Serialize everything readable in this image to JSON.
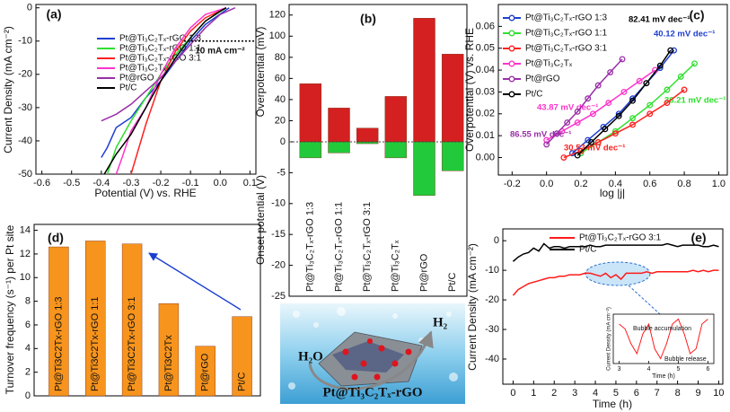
{
  "chart_data": [
    {
      "type": "line",
      "panel_label": "(a)",
      "xlabel": "Potential (V) vs. RHE",
      "ylabel": "Current Density (mA cm⁻²)",
      "xlim": [
        -0.62,
        0.12
      ],
      "ylim": [
        -50,
        1
      ],
      "xticks": [
        -0.6,
        -0.5,
        -0.4,
        -0.3,
        -0.2,
        -0.1,
        {
          "value": 0,
          "label": "0.0"
        },
        0.1
      ],
      "yticks": [
        -50,
        -40,
        -30,
        -20,
        -10,
        0
      ],
      "reference_line": {
        "value": -10,
        "label": "10 mA cm⁻²"
      },
      "series": [
        {
          "name": "Pt@Ti₃C₂Tₓ-rGO 1:3",
          "color": "#1f3fd1",
          "x": [
            0.03,
            -0.05,
            -0.1,
            -0.15,
            -0.2,
            -0.25,
            -0.3,
            -0.35,
            -0.38,
            -0.4
          ],
          "values": [
            0,
            -5,
            -10,
            -16,
            -22,
            -27,
            -33,
            -36,
            -42,
            -45
          ]
        },
        {
          "name": "Pt@Ti₃C₂Tₓ-rGO 1:1",
          "color": "#2fe02f",
          "x": [
            0.02,
            -0.05,
            -0.1,
            -0.15,
            -0.2,
            -0.25,
            -0.3,
            -0.35,
            -0.38
          ],
          "values": [
            0,
            -4,
            -9,
            -14,
            -20,
            -27,
            -34,
            -42,
            -50
          ]
        },
        {
          "name": "Pt@Ti₃C₂Tₓ-rGO 3:1",
          "color": "#ff2020",
          "x": [
            0.02,
            -0.05,
            -0.1,
            -0.15,
            -0.2,
            -0.25,
            -0.28,
            -0.3
          ],
          "values": [
            0,
            -3,
            -7,
            -13,
            -22,
            -35,
            -44,
            -50
          ]
        },
        {
          "name": "Pt@Ti₃C₂Tₓ",
          "color": "#ff33cc",
          "x": [
            0.02,
            -0.05,
            -0.1,
            -0.15,
            -0.2,
            -0.25,
            -0.3,
            -0.33,
            -0.35
          ],
          "values": [
            0,
            -2,
            -6,
            -12,
            -20,
            -30,
            -37,
            -45,
            -50
          ]
        },
        {
          "name": "Pt@rGO",
          "color": "#9a2fa8",
          "x": [
            0.05,
            0,
            -0.05,
            -0.1,
            -0.15,
            -0.2,
            -0.25,
            -0.3,
            -0.35,
            -0.4
          ],
          "values": [
            0,
            -2,
            -6,
            -11,
            -16,
            -21,
            -25,
            -29,
            -32,
            -34
          ]
        },
        {
          "name": "Pt/C",
          "color": "#000000",
          "x": [
            0.02,
            0,
            -0.05,
            -0.1,
            -0.15,
            -0.2,
            -0.25,
            -0.3,
            -0.35,
            -0.39
          ],
          "values": [
            0,
            -1,
            -4,
            -9,
            -15,
            -22,
            -30,
            -38,
            -44,
            -50
          ]
        }
      ]
    },
    {
      "type": "bar",
      "panel_label": "(b)",
      "ylabel": "Overpotential (mV)",
      "y2label": "Onset potential (V)",
      "categories": [
        "Pt@Ti₃C₂Tₓ-rGO 1:3",
        "Pt@Ti₃C₂Tₓ-rGO 1:1",
        "Pt@Ti₃C₂Tₓ-rGO 3:1",
        "Pt@Ti₃C₂Tₓ",
        "Pt@rGO",
        "Pt/C"
      ],
      "ylim": [
        0,
        130
      ],
      "yticks": [
        0,
        20,
        40,
        60,
        80,
        100,
        120
      ],
      "y2lim": [
        -25,
        0
      ],
      "y2ticks": [
        -5,
        -10,
        -15,
        -20,
        -25
      ],
      "series": [
        {
          "color": "#d42020",
          "values": [
            55,
            32,
            13,
            43,
            117,
            83
          ]
        },
        {
          "color": "#22c93a",
          "axis": "y2",
          "values": [
            -2.6,
            -1.8,
            -0.3,
            -2.6,
            -8.7,
            -4.7
          ]
        }
      ]
    },
    {
      "type": "line",
      "markers": true,
      "panel_label": "(c)",
      "xlabel": "log |j|",
      "ylabel": "Overpotential (V) vs. RHE",
      "xlim": [
        -0.28,
        1.05
      ],
      "ylim": [
        -0.008,
        0.07
      ],
      "xticks": [
        -0.2,
        {
          "value": 0,
          "label": "0.0"
        },
        0.2,
        0.4,
        0.6,
        0.8,
        {
          "value": 1,
          "label": "1.0"
        }
      ],
      "yticks": [
        {
          "value": 0,
          "label": "0.00"
        },
        0.01,
        0.02,
        0.03,
        0.04,
        0.05,
        0.06
      ],
      "series": [
        {
          "name": "Pt@Ti₃C₂Tₓ-rGO 1:3",
          "color": "#1f3fd1",
          "slope_label": "40.12 mV dec⁻¹",
          "x": [
            0.15,
            0.24,
            0.33,
            0.42,
            0.5,
            0.58,
            0.66,
            0.74
          ],
          "values": [
            0.002,
            0.008,
            0.014,
            0.02,
            0.027,
            0.034,
            0.041,
            0.049
          ]
        },
        {
          "name": "Pt@Ti₃C₂Tₓ-rGO 1:1",
          "color": "#2fe02f",
          "slope_label": "36.21 mV dec⁻¹",
          "x": [
            0.2,
            0.3,
            0.4,
            0.5,
            0.6,
            0.7,
            0.78,
            0.86
          ],
          "values": [
            0.002,
            0.007,
            0.012,
            0.018,
            0.024,
            0.031,
            0.037,
            0.043
          ]
        },
        {
          "name": "Pt@Ti₃C₂Tₓ-rGO 3:1",
          "color": "#ff2020",
          "slope_label": "30.53 mV dec⁻¹",
          "x": [
            0.1,
            0.2,
            0.3,
            0.4,
            0.5,
            0.6,
            0.7,
            0.8
          ],
          "values": [
            0,
            0.003,
            0.007,
            0.011,
            0.015,
            0.02,
            0.025,
            0.031
          ]
        },
        {
          "name": "Pt@Ti₃C₂Tₓ",
          "color": "#ff33cc",
          "slope_label": "43.87 mV dec⁻¹",
          "x": [
            0,
            0.09,
            0.18,
            0.27,
            0.36,
            0.45,
            0.54,
            0.63
          ],
          "values": [
            0.008,
            0.012,
            0.016,
            0.02,
            0.025,
            0.03,
            0.035,
            0.04
          ]
        },
        {
          "name": "Pt@rGO",
          "color": "#9a2fa8",
          "slope_label": "86.55 mV dec⁻¹",
          "x": [
            0,
            0.06,
            0.12,
            0.18,
            0.24,
            0.3,
            0.37,
            0.44
          ],
          "values": [
            0.006,
            0.011,
            0.016,
            0.021,
            0.027,
            0.033,
            0.039,
            0.045
          ]
        },
        {
          "name": "Pt/C",
          "color": "#000000",
          "slope_label": "82.41 mV dec⁻¹",
          "x": [
            0.18,
            0.26,
            0.34,
            0.42,
            0.5,
            0.58,
            0.66,
            0.72
          ],
          "values": [
            0.001,
            0.007,
            0.013,
            0.019,
            0.026,
            0.034,
            0.042,
            0.049
          ]
        }
      ]
    },
    {
      "type": "bar",
      "panel_label": "(d)",
      "ylabel": "Turnover frequency (s⁻¹) per Pt site",
      "categories": [
        "Pt@Ti3C2Tx-rGO 1:3",
        "Pt@Ti3C2Tx-rGO 1:1",
        "Pt@Ti3C2Tx-rGO 3:1",
        "Pt@Ti3C2Tx",
        "Pt@rGO",
        "Pt/C"
      ],
      "values": [
        12.6,
        13.1,
        12.85,
        7.8,
        4.2,
        6.7
      ],
      "color": "#f7941d",
      "ylim": [
        0,
        14.5
      ],
      "yticks": [
        0,
        2,
        4,
        6,
        8,
        10,
        12,
        14
      ]
    },
    {
      "type": "line",
      "panel_label": "(e)",
      "xlabel": "Time (h)",
      "ylabel": "Current Density (mA cm⁻²)",
      "xlim": [
        -0.5,
        10.2
      ],
      "ylim": [
        -48.5,
        4
      ],
      "xticks": [
        0,
        1,
        2,
        3,
        4,
        5,
        6,
        7,
        8,
        9,
        10
      ],
      "yticks": [
        -40,
        -30,
        -20,
        -10,
        0
      ],
      "x": [
        0,
        0.25,
        0.5,
        0.75,
        1,
        1.25,
        1.5,
        1.75,
        2,
        2.25,
        2.5,
        2.75,
        3,
        3.25,
        3.5,
        3.75,
        4,
        4.25,
        4.5,
        4.75,
        5,
        5.25,
        5.5,
        5.75,
        6,
        6.25,
        6.5,
        6.75,
        7,
        7.25,
        7.5,
        7.75,
        8,
        8.25,
        8.5,
        8.75,
        9,
        9.25,
        9.5,
        9.75,
        10
      ],
      "series": [
        {
          "name": "Pt@Ti₃C₂Tₓ-rGO 3:1",
          "color": "#ff1a1a",
          "values": [
            -18.5,
            -16.5,
            -15.5,
            -14.5,
            -14,
            -13.5,
            -13,
            -12.5,
            -12.5,
            -12,
            -12,
            -11.5,
            -11.5,
            -11.5,
            -11,
            -11,
            -11.5,
            -12,
            -11,
            -12.5,
            -11.5,
            -13,
            -11,
            -11,
            -11,
            -11,
            -10.5,
            -11,
            -10.5,
            -10.5,
            -10.5,
            -10.5,
            -10.5,
            -10.5,
            -10.5,
            -10,
            -10.5,
            -10,
            -10.5,
            -10,
            -10
          ]
        },
        {
          "name": "Pt/C",
          "color": "#000000",
          "values": [
            -7,
            -5.5,
            -4.5,
            -4,
            -2.5,
            -3.5,
            -1,
            -2.5,
            -2,
            -2,
            -2.5,
            -2,
            -2,
            -2,
            -2,
            -1.5,
            -2,
            -2,
            -1.5,
            -1.5,
            -1.5,
            -1.5,
            -1.5,
            -1.5,
            -1.5,
            -1.5,
            -1.5,
            -1.5,
            -1.5,
            -1.5,
            -1,
            -1.5,
            -2,
            -1.5,
            -1.5,
            -1.5,
            -1.5,
            -2,
            -2,
            -1.5,
            -2
          ]
        }
      ],
      "inset": {
        "xlabel": "Time (h)",
        "ylabel": "Current Density (mA cm⁻²)",
        "xlim": [
          2.8,
          6.2
        ],
        "ylim": [
          -15,
          -10
        ],
        "xticks": [
          3,
          4,
          5,
          6
        ],
        "color": "#ff1a1a",
        "x": [
          3,
          3.2,
          3.4,
          3.6,
          3.8,
          4,
          4.2,
          4.4,
          4.6,
          4.8,
          5,
          5.2,
          5.4,
          5.6,
          5.8,
          6
        ],
        "values": [
          -11,
          -11.5,
          -13,
          -14,
          -12,
          -11,
          -13.5,
          -14.5,
          -13,
          -11,
          -10.5,
          -12,
          -14,
          -13.5,
          -11,
          -10.5
        ],
        "annotations": [
          "Bubble accumulation",
          "Bubble release"
        ]
      }
    }
  ],
  "schematic": {
    "labels": [
      "H₂O",
      "H₂",
      "Pt@Ti₃C₂Tₓ-rGO"
    ]
  }
}
